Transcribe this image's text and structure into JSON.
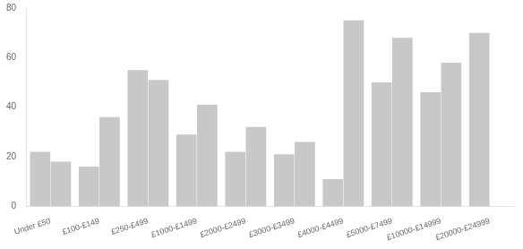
{
  "chart_data": {
    "type": "bar",
    "categories": [
      "Under £50",
      "£100-£149",
      "£250-£499",
      "£1000-£1499",
      "£2000-£2499",
      "£3000-£3499",
      "£4000-£4499",
      "£5000-£7499",
      "£10000-£14999",
      "£20000-£24999"
    ],
    "series": [
      {
        "color": "#c8c8c8",
        "values": [
          22,
          16,
          55,
          29,
          22,
          21,
          11,
          50,
          46,
          70
        ]
      },
      {
        "color": "#c8c8c8",
        "values": [
          18,
          36,
          51,
          41,
          32,
          26,
          75,
          68,
          58,
          null
        ]
      }
    ],
    "ylim": [
      0,
      80
    ],
    "yticks": [
      0,
      20,
      40,
      60,
      80
    ],
    "grid": false
  }
}
